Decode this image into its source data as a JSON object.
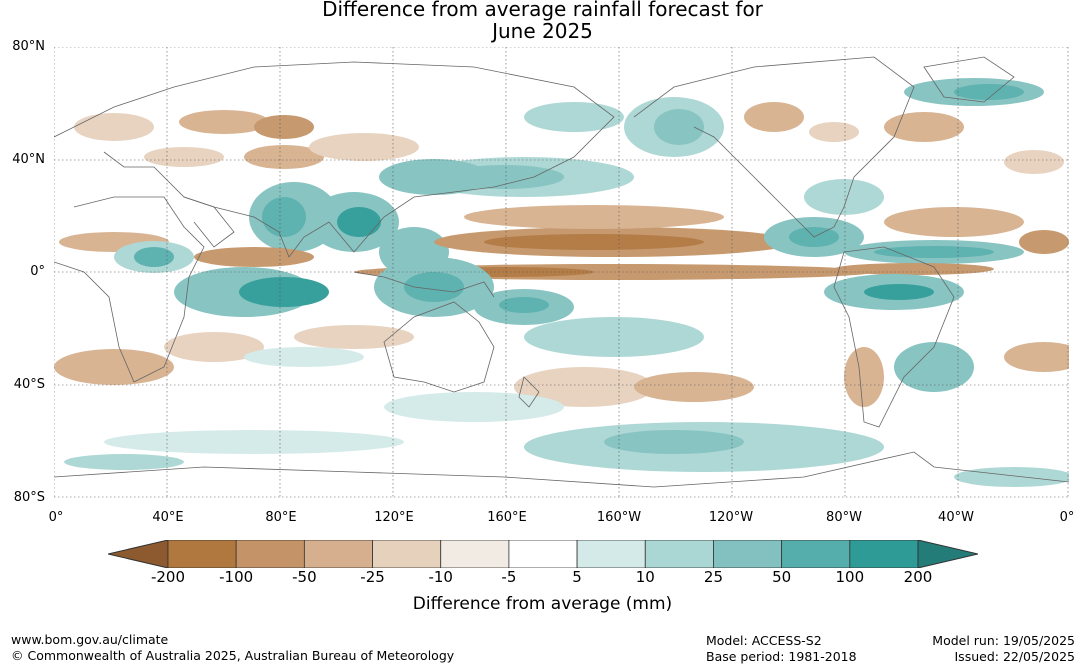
{
  "title_line1": "Difference from average rainfall forecast for",
  "title_line2": "June 2025",
  "lat_labels": [
    "80°N",
    "40°N",
    "0°",
    "40°S",
    "80°S"
  ],
  "lon_labels": [
    "0°",
    "40°E",
    "80°E",
    "120°E",
    "160°E",
    "160°W",
    "120°W",
    "80°W",
    "40°W",
    "0°"
  ],
  "colorbar": {
    "title": "Difference from average (mm)",
    "ticks": [
      "-200",
      "-100",
      "-50",
      "-25",
      "-10",
      "-5",
      "5",
      "10",
      "25",
      "50",
      "100",
      "200"
    ],
    "colors": [
      "#8c5a2e",
      "#b0773f",
      "#c49468",
      "#d6b08e",
      "#e6d1bd",
      "#f1ebe4",
      "#ffffff",
      "#d3eae8",
      "#aad6d3",
      "#82c1bf",
      "#56aeac",
      "#2e9b97",
      "#247c78"
    ]
  },
  "footer": {
    "url": "www.bom.gov.au/climate",
    "copyright": "© Commonwealth of Australia 2025, Australian Bureau of Meteorology",
    "model": "Model: ACCESS-S2",
    "base_period": "Base period: 1981-2018",
    "model_run": "Model run: 19/05/2025",
    "issued": "Issued: 22/05/2025"
  }
}
